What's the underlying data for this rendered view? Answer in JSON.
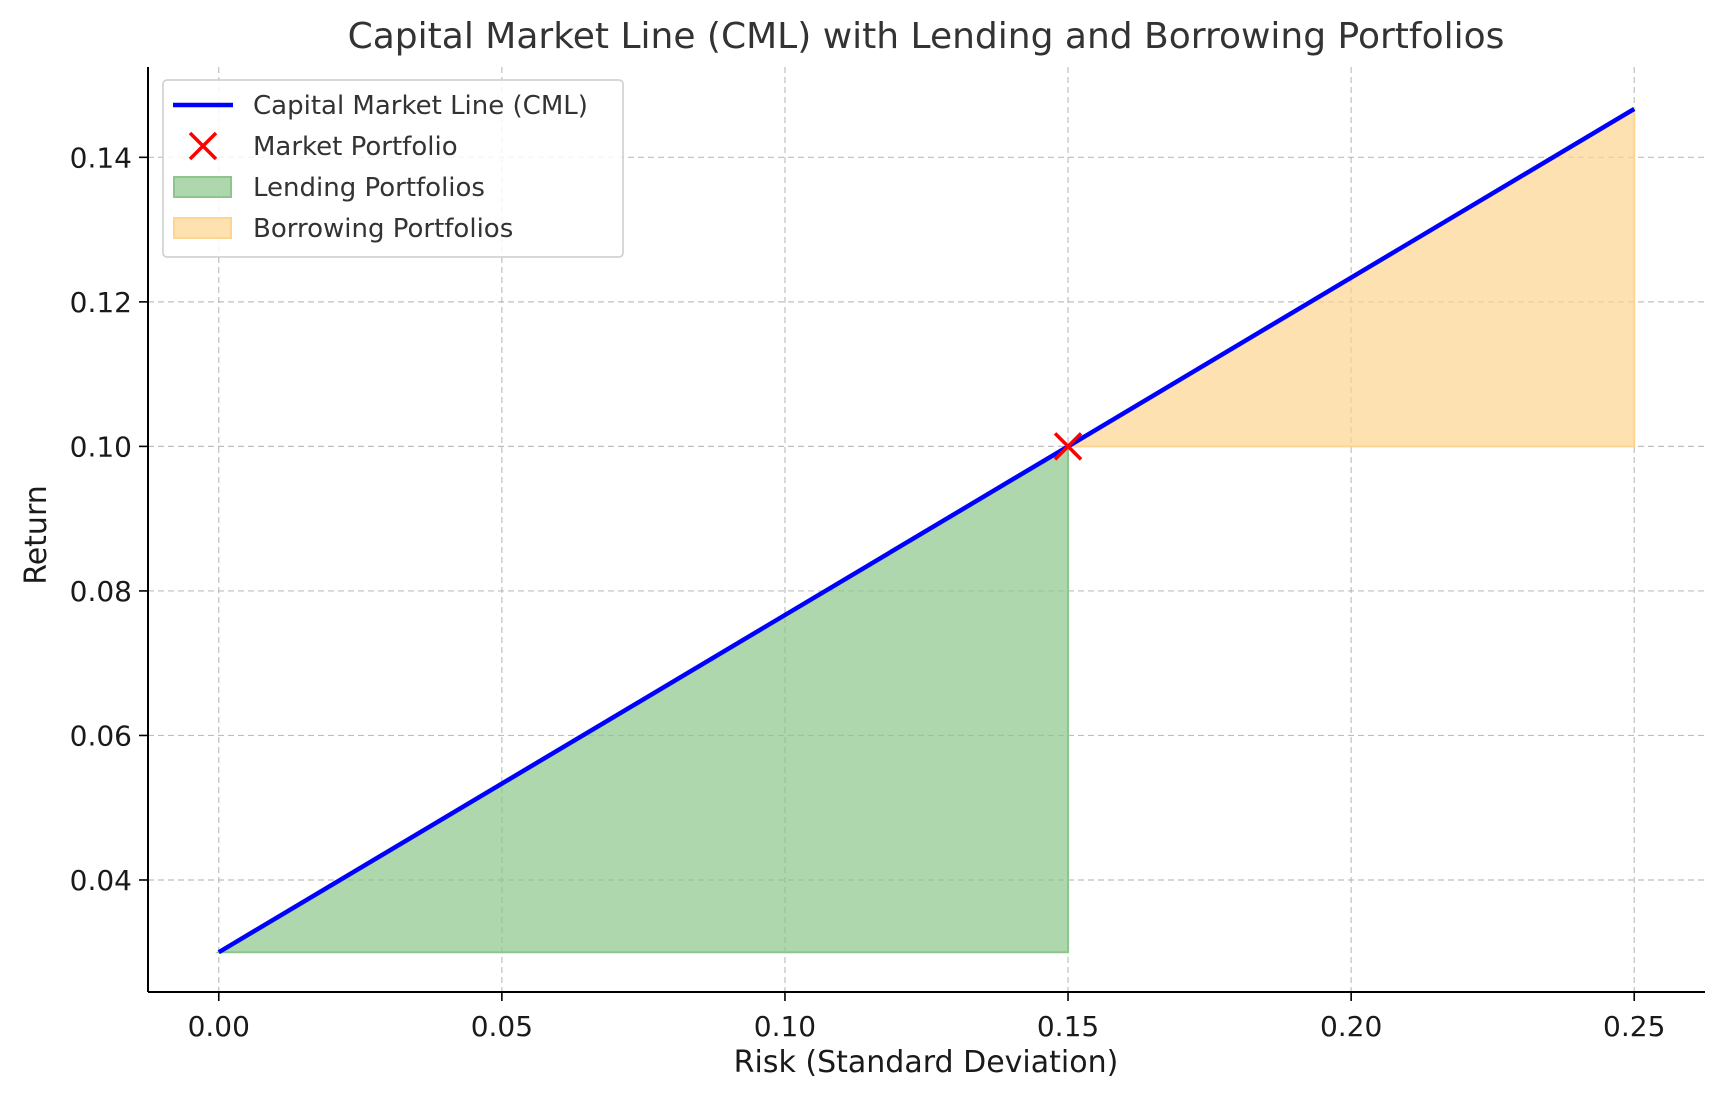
{
  "chart_data": {
    "type": "line",
    "title": "Capital Market Line (CML) with Lending and Borrowing Portfolios",
    "xlabel": "Risk (Standard Deviation)",
    "ylabel": "Return",
    "xlim": [
      -0.0125,
      0.2625
    ],
    "ylim": [
      0.0245,
      0.1525
    ],
    "x_ticks": [
      "0.00",
      "0.05",
      "0.10",
      "0.15",
      "0.20",
      "0.25"
    ],
    "y_ticks": [
      "0.04",
      "0.06",
      "0.08",
      "0.10",
      "0.12",
      "0.14"
    ],
    "grid": true,
    "legend_position": "top-left",
    "series": [
      {
        "name": "Capital Market Line (CML)",
        "kind": "line",
        "color": "#0000ff",
        "x": [
          0.0,
          0.15,
          0.25
        ],
        "y": [
          0.03,
          0.1,
          0.1467
        ]
      },
      {
        "name": "Market Portfolio",
        "kind": "marker",
        "marker": "x",
        "color": "#ff0000",
        "x": [
          0.15
        ],
        "y": [
          0.1
        ]
      },
      {
        "name": "Lending Portfolios",
        "kind": "fill",
        "color": "#8cc68c",
        "x": [
          0.0,
          0.15
        ],
        "y_lower": [
          0.03,
          0.03
        ],
        "y_upper": [
          0.03,
          0.1
        ]
      },
      {
        "name": "Borrowing Portfolios",
        "kind": "fill",
        "color": "#fdd490",
        "x": [
          0.15,
          0.25
        ],
        "y_lower": [
          0.1,
          0.1
        ],
        "y_upper": [
          0.1,
          0.1467
        ]
      }
    ]
  }
}
